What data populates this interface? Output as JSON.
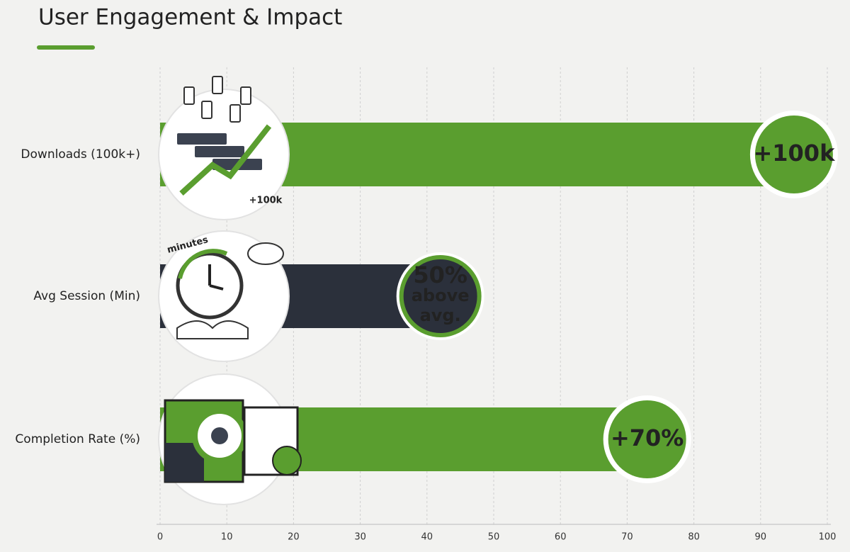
{
  "chart_data": {
    "type": "bar",
    "orientation": "horizontal",
    "title": "User Engagement & Impact",
    "categories": [
      "Downloads (100k+)",
      "Avg Session (Min)",
      "Completion Rate (%)"
    ],
    "values": [
      95,
      42,
      73
    ],
    "colors": [
      "#5a9e2f",
      "#2b303b",
      "#5a9e2f"
    ],
    "badges": [
      [
        "+100k"
      ],
      [
        "50%",
        "above",
        "avg."
      ],
      [
        "+70%"
      ]
    ],
    "icon_texts": [
      "+100k",
      "minutes"
    ],
    "xlim": [
      0,
      100
    ],
    "xticks": [
      0,
      10,
      20,
      30,
      40,
      50,
      60,
      70,
      80,
      90,
      100
    ],
    "grid": true
  }
}
